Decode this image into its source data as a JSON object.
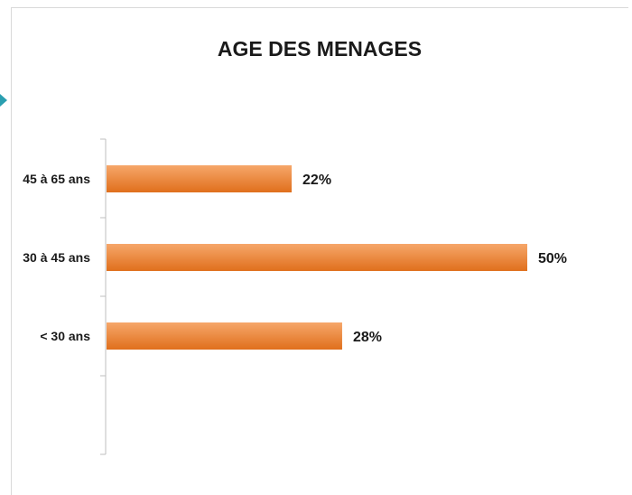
{
  "chart_data": {
    "type": "bar",
    "orientation": "horizontal",
    "title": "AGE DES MENAGES",
    "categories": [
      "45 à 65 ans",
      "30 à 45 ans",
      "< 30 ans"
    ],
    "values": [
      22,
      50,
      28
    ],
    "value_labels": [
      "22%",
      "50%",
      "28%"
    ],
    "unit": "%",
    "xlim": [
      0,
      50
    ],
    "grid": false,
    "legend": "none",
    "bar_color_top": "#f6a76a",
    "bar_color_bottom": "#e06f1c"
  }
}
